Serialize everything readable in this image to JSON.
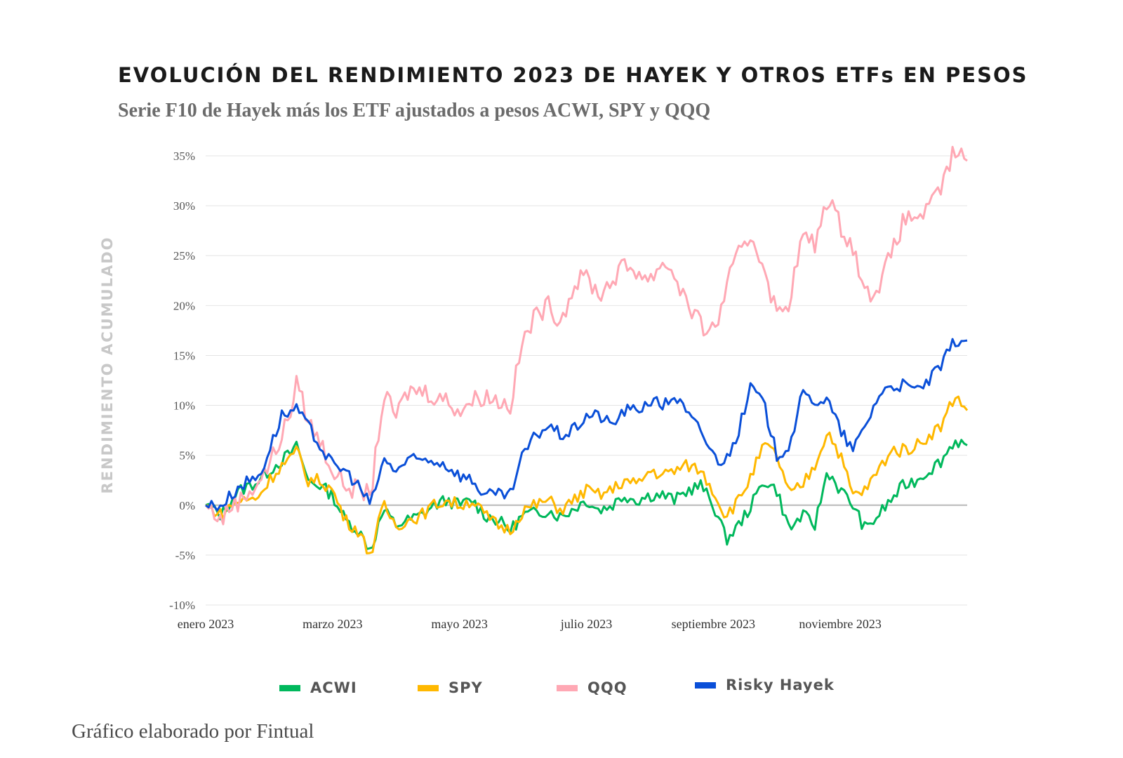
{
  "title": "EVOLUCIÓN DEL RENDIMIENTO 2023 DE HAYEK Y OTROS ETFs EN PESOS",
  "subtitle": "Serie F10 de Hayek más los ETF ajustados a pesos ACWI, SPY y QQQ",
  "footer": "Gráfico elaborado por Fintual",
  "chart_data": {
    "type": "line",
    "title": "EVOLUCIÓN DEL RENDIMIENTO 2023 DE HAYEK Y OTROS ETFs EN PESOS",
    "subtitle": "Serie F10 de Hayek más los ETF ajustados a pesos ACWI, SPY y QQQ",
    "xlabel": "",
    "ylabel": "RENDIMIENTO ACUMULADO",
    "ylim": [
      -10,
      35
    ],
    "yticks": [
      35,
      30,
      25,
      20,
      15,
      10,
      5,
      0,
      -5,
      -10
    ],
    "ytick_labels": [
      "35%",
      "30%",
      "25%",
      "20%",
      "15%",
      "10%",
      "5%",
      "0%",
      "-5%",
      "-10%"
    ],
    "xlim": [
      "2023-01-01",
      "2023-12-31"
    ],
    "xtick_labels": [
      "enero 2023",
      "marzo 2023",
      "mayo 2023",
      "julio 2023",
      "septiembre 2023",
      "noviembre 2023"
    ],
    "xtick_months": [
      0,
      2,
      4,
      6,
      8,
      10
    ],
    "grid": true,
    "legend_position": "bottom",
    "series": [
      {
        "name": "ACWI",
        "color": "#00b85c",
        "x": [
          0,
          0.25,
          0.4,
          0.55,
          0.7,
          0.85,
          1.0,
          1.2,
          1.4,
          1.45,
          1.6,
          1.8,
          2.0,
          2.2,
          2.4,
          2.6,
          2.8,
          3.0,
          3.2,
          3.4,
          3.6,
          3.8,
          4.0,
          4.2,
          4.4,
          4.6,
          4.8,
          5.0,
          5.2,
          5.4,
          5.6,
          5.8,
          6.0,
          6.2,
          6.4,
          6.6,
          6.8,
          7.0,
          7.2,
          7.4,
          7.6,
          7.8,
          8.0,
          8.1,
          8.2,
          8.4,
          8.6,
          8.8,
          9.0,
          9.2,
          9.4,
          9.6,
          9.8,
          10.0,
          10.2,
          10.4,
          10.6,
          10.8,
          11.0,
          11.2,
          11.4,
          11.6,
          11.8,
          12.0
        ],
        "values": [
          0,
          -1,
          0.5,
          1.5,
          2,
          2.5,
          3.5,
          4.5,
          5.5,
          6,
          2.5,
          2,
          1,
          -1.5,
          -2.5,
          -4.5,
          -0.5,
          -2,
          -1.5,
          -1,
          0,
          0.5,
          0,
          0.5,
          -1,
          -1.5,
          -2.5,
          -1,
          -0.8,
          -0.5,
          -1.2,
          -0.3,
          0.5,
          -0.5,
          0,
          1,
          0.5,
          1,
          1,
          0.5,
          1.5,
          2,
          0,
          -1.5,
          -3.5,
          -2,
          0,
          2.5,
          1.5,
          -2.5,
          -1,
          -2,
          3.5,
          1.5,
          0,
          -2.5,
          -1,
          0.5,
          2,
          2.5,
          3.5,
          4.5,
          6.5,
          6
        ]
      },
      {
        "name": "SPY",
        "color": "#ffb800",
        "x": [
          0,
          0.25,
          0.4,
          0.55,
          0.7,
          0.85,
          1.0,
          1.2,
          1.4,
          1.45,
          1.6,
          1.8,
          2.0,
          2.2,
          2.4,
          2.6,
          2.8,
          3.0,
          3.2,
          3.4,
          3.6,
          3.8,
          4.0,
          4.2,
          4.4,
          4.6,
          4.8,
          5.0,
          5.2,
          5.4,
          5.6,
          5.8,
          6.0,
          6.2,
          6.4,
          6.6,
          6.8,
          7.0,
          7.2,
          7.4,
          7.6,
          7.8,
          8.0,
          8.1,
          8.2,
          8.4,
          8.6,
          8.8,
          9.0,
          9.2,
          9.4,
          9.6,
          9.8,
          10.0,
          10.2,
          10.4,
          10.6,
          10.8,
          11.0,
          11.2,
          11.4,
          11.6,
          11.8,
          12.0
        ],
        "values": [
          0,
          -1,
          0,
          0.5,
          0.5,
          1,
          2.5,
          4,
          5,
          5.5,
          2.5,
          2.5,
          1.5,
          -1.5,
          -2.5,
          -5,
          0,
          -2,
          -1.5,
          -1,
          0,
          0.5,
          0,
          0.5,
          -1,
          -2,
          -2.5,
          -0.5,
          0,
          0.5,
          -0.5,
          0.5,
          1.5,
          1,
          1.5,
          2.5,
          2,
          3.5,
          3,
          3.5,
          4,
          3.5,
          1.5,
          0,
          -1,
          0.5,
          3,
          6,
          5,
          1,
          2,
          4,
          7.5,
          5,
          1,
          1.5,
          3.5,
          5.5,
          5.5,
          6,
          7,
          8,
          11,
          9.5
        ]
      },
      {
        "name": "QQQ",
        "color": "#ffa8b4",
        "x": [
          0,
          0.25,
          0.4,
          0.55,
          0.7,
          0.85,
          1.0,
          1.2,
          1.4,
          1.45,
          1.6,
          1.8,
          2.0,
          2.2,
          2.4,
          2.6,
          2.8,
          3.0,
          3.2,
          3.4,
          3.6,
          3.8,
          4.0,
          4.2,
          4.4,
          4.6,
          4.8,
          5.0,
          5.2,
          5.4,
          5.6,
          5.8,
          6.0,
          6.2,
          6.4,
          6.6,
          6.8,
          7.0,
          7.2,
          7.4,
          7.6,
          7.8,
          8.0,
          8.1,
          8.2,
          8.4,
          8.6,
          8.8,
          9.0,
          9.2,
          9.4,
          9.6,
          9.8,
          10.0,
          10.2,
          10.4,
          10.6,
          10.8,
          11.0,
          11.2,
          11.4,
          11.6,
          11.8,
          12.0
        ],
        "values": [
          0,
          -1.5,
          0,
          0.5,
          1.5,
          2.5,
          4,
          7,
          10.5,
          13,
          8.5,
          6.5,
          3.5,
          2,
          1.5,
          1,
          11,
          9,
          11.5,
          11.5,
          11,
          10.5,
          9.5,
          10.5,
          11,
          10.5,
          10,
          16.5,
          19,
          20,
          18.5,
          22,
          23,
          21,
          22.5,
          24,
          23.5,
          22.5,
          24.5,
          23,
          20,
          18,
          17.5,
          19,
          22,
          25,
          27,
          24,
          19,
          20.5,
          27,
          26,
          31,
          28,
          26,
          21,
          22,
          25,
          28.5,
          29,
          29.5,
          32,
          35.5,
          34.5
        ]
      },
      {
        "name": "Risky Hayek",
        "color": "#0a4fd8",
        "x": [
          0,
          0.25,
          0.4,
          0.55,
          0.7,
          0.85,
          1.0,
          1.2,
          1.4,
          1.45,
          1.6,
          1.8,
          2.0,
          2.2,
          2.4,
          2.6,
          2.8,
          3.0,
          3.2,
          3.4,
          3.6,
          3.8,
          4.0,
          4.2,
          4.4,
          4.6,
          4.8,
          5.0,
          5.2,
          5.4,
          5.6,
          5.8,
          6.0,
          6.2,
          6.4,
          6.6,
          6.8,
          7.0,
          7.2,
          7.4,
          7.6,
          7.8,
          8.0,
          8.1,
          8.2,
          8.4,
          8.6,
          8.8,
          9.0,
          9.2,
          9.4,
          9.6,
          9.8,
          10.0,
          10.2,
          10.4,
          10.6,
          10.8,
          11.0,
          11.2,
          11.4,
          11.6,
          11.8,
          12.0
        ],
        "values": [
          0,
          0,
          1,
          2,
          2.5,
          3,
          5.5,
          9,
          9.5,
          9.5,
          8,
          6,
          4,
          3.5,
          2,
          0,
          4.5,
          3.5,
          4.5,
          4.5,
          4.5,
          4,
          3,
          2.5,
          1,
          1,
          1,
          5,
          7,
          8,
          7,
          7.5,
          9,
          9,
          8,
          9.5,
          9.5,
          10.5,
          10,
          11,
          9,
          7.5,
          5,
          4.5,
          4.5,
          7.5,
          12,
          10,
          5,
          6,
          11,
          10.5,
          10.5,
          7.5,
          5.5,
          8,
          11,
          12,
          12,
          11.5,
          12.5,
          14,
          16.5,
          16.5
        ]
      }
    ]
  }
}
